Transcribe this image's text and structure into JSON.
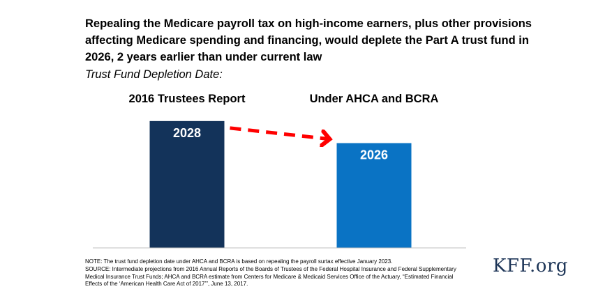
{
  "title": "Repealing the Medicare payroll tax on high-income earners, plus other provisions affecting Medicare spending and financing, would deplete the Part A trust fund in 2026, 2 years earlier than under current law",
  "subtitle": "Trust Fund Depletion Date:",
  "chart_data": {
    "type": "bar",
    "categories": [
      "2016 Trustees Report",
      "Under AHCA and BCRA"
    ],
    "values": [
      2028,
      2026
    ],
    "value_labels": [
      "2028",
      "2026"
    ],
    "colors": [
      "#13335a",
      "#0a73c4"
    ],
    "ylim": [
      2016.5,
      2029
    ],
    "grid": false,
    "annotation": "dashed red arrow from first bar to second bar"
  },
  "notes": {
    "note": "NOTE: The trust fund depletion date under AHCA and BCRA is based on repealing the payroll surtax effective January 2023.",
    "source": "SOURCE: Intermediate projections from 2016 Annual Reports of the Boards of Trustees of the Federal Hospital Insurance and Federal Supplementary Medical Insurance Trust Funds; AHCA and BCRA estimate from Centers for Medicare & Medicaid Services Office of the Actuary, “Estimated Financial Effects of the ‘American Health Care Act of 2017’”, June 13, 2017."
  },
  "logo": "KFF.org",
  "colors": {
    "arrow": "#ff0000",
    "axis": "#bfbfbf"
  }
}
